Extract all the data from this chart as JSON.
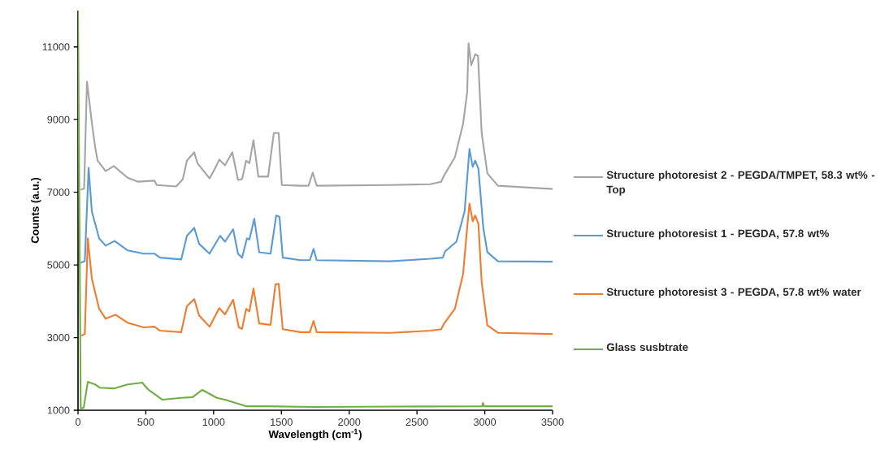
{
  "chart_data": {
    "type": "line",
    "xlabel": "Wavelength (cm$^{-1}$)",
    "ylabel": "Counts (a.u.)",
    "xlim": [
      0,
      3500
    ],
    "ylim": [
      1000,
      12000
    ],
    "xticks": [
      0,
      500,
      1000,
      1500,
      2000,
      2500,
      3000,
      3500
    ],
    "yticks": [
      1000,
      3000,
      5000,
      7000,
      9000,
      11000
    ],
    "grid": false,
    "legend": "right",
    "series": [
      {
        "name": "Structure photoresist 2 - PEGDA/TMPET, 58.3 wt% - Top",
        "color": "#a5a5a5",
        "x": [
          20,
          45,
          66,
          102,
          126,
          144,
          204,
          264,
          365,
          443,
          563,
          581,
          725,
          773,
          803,
          857,
          881,
          970,
          1000,
          1042,
          1084,
          1138,
          1180,
          1210,
          1240,
          1264,
          1294,
          1330,
          1402,
          1444,
          1480,
          1503,
          1641,
          1700,
          1731,
          1761,
          2300,
          2600,
          2678,
          2701,
          2779,
          2840,
          2870,
          2880,
          2900,
          2930,
          2950,
          2977,
          3019,
          3097,
          3500
        ],
        "values": [
          7070,
          7100,
          10040,
          8920,
          8250,
          7870,
          7580,
          7720,
          7400,
          7290,
          7320,
          7200,
          7160,
          7360,
          7870,
          8100,
          7800,
          7380,
          7580,
          7900,
          7740,
          8100,
          7340,
          7360,
          7870,
          7800,
          8430,
          7430,
          7430,
          8630,
          8630,
          7200,
          7180,
          7180,
          7540,
          7180,
          7200,
          7220,
          7290,
          7470,
          7960,
          8880,
          9750,
          11100,
          10500,
          10800,
          10750,
          8630,
          7520,
          7180,
          7090
        ]
      },
      {
        "name": "Structure photoresist 1 - PEGDA, 57.8 wt%",
        "color": "#5b9bd5",
        "x": [
          20,
          50,
          78,
          102,
          156,
          204,
          270,
          365,
          485,
          563,
          605,
          761,
          803,
          857,
          893,
          970,
          1048,
          1084,
          1144,
          1180,
          1210,
          1246,
          1264,
          1300,
          1336,
          1420,
          1462,
          1486,
          1510,
          1641,
          1710,
          1737,
          1760,
          2300,
          2600,
          2690,
          2707,
          2791,
          2851,
          2887,
          2911,
          2929,
          2953,
          2989,
          3019,
          3097,
          3500
        ],
        "values": [
          5060,
          5100,
          7670,
          6470,
          5730,
          5530,
          5660,
          5400,
          5310,
          5310,
          5200,
          5150,
          5800,
          6020,
          5580,
          5310,
          5800,
          5640,
          5980,
          5310,
          5200,
          5730,
          5700,
          6270,
          5350,
          5310,
          6360,
          6320,
          5200,
          5130,
          5130,
          5440,
          5130,
          5100,
          5170,
          5200,
          5370,
          5640,
          6470,
          8190,
          7700,
          7870,
          7650,
          6020,
          5350,
          5100,
          5090
        ]
      },
      {
        "name": "Structure photoresist 3 - PEGDA, 57.8 wt% water",
        "color": "#ed7d31",
        "x": [
          24,
          50,
          72,
          102,
          156,
          204,
          276,
          365,
          485,
          563,
          605,
          761,
          803,
          857,
          893,
          970,
          1042,
          1084,
          1144,
          1186,
          1210,
          1240,
          1264,
          1294,
          1336,
          1420,
          1456,
          1480,
          1510,
          1641,
          1710,
          1737,
          1760,
          2300,
          2600,
          2678,
          2701,
          2779,
          2840,
          2870,
          2887,
          2911,
          2929,
          2953,
          2977,
          3019,
          3097,
          3500
        ],
        "values": [
          3050,
          3100,
          5730,
          4620,
          3790,
          3520,
          3630,
          3410,
          3280,
          3300,
          3190,
          3150,
          3860,
          4060,
          3610,
          3300,
          3810,
          3640,
          4040,
          3280,
          3240,
          3790,
          3720,
          4350,
          3390,
          3350,
          4460,
          4480,
          3230,
          3150,
          3150,
          3460,
          3150,
          3130,
          3190,
          3230,
          3390,
          3790,
          4750,
          6020,
          6690,
          6200,
          6360,
          6130,
          4530,
          3340,
          3130,
          3100
        ]
      },
      {
        "name": "Glass susbtrate",
        "color": "#70ad47",
        "x": [
          0,
          20,
          42,
          72,
          126,
          162,
          264,
          365,
          473,
          521,
          623,
          761,
          845,
          917,
          1024,
          1084,
          1240,
          1402,
          1750,
          2300,
          2980,
          2987,
          2994,
          3500
        ],
        "values": [
          12000,
          1050,
          1070,
          1780,
          1710,
          1620,
          1600,
          1710,
          1760,
          1560,
          1290,
          1340,
          1360,
          1560,
          1340,
          1290,
          1110,
          1110,
          1090,
          1100,
          1110,
          1200,
          1110,
          1110
        ]
      }
    ]
  }
}
